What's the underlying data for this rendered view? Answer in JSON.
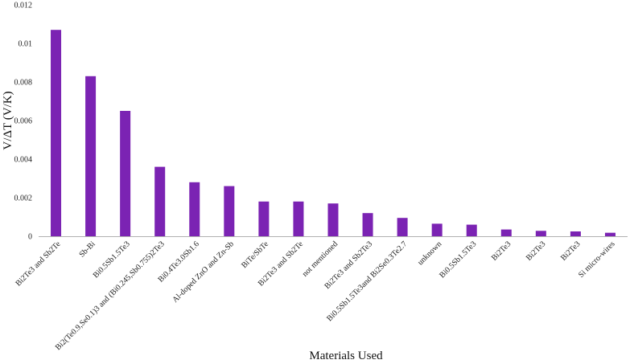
{
  "chart_data": {
    "type": "bar",
    "title": "",
    "xlabel": "Materials Used",
    "ylabel": "V/ΔT (V/K)",
    "ylim": [
      0,
      0.012
    ],
    "yticks": [
      "0",
      "0.002",
      "0.004",
      "0.006",
      "0.008",
      "0.01",
      "0.012"
    ],
    "ytick_values": [
      0,
      0.002,
      0.004,
      0.006,
      0.008,
      0.01,
      0.012
    ],
    "bar_color": "#7b23b3",
    "grid": false,
    "legend": "none",
    "categories": [
      "Bi2Te3 and Sb2Te",
      "Sb-Bi",
      "Bi0.5Sb1.5Te3",
      "Bi2(Te0.9,Se0.1)3 and (Bi0.245,Sb0.755)2Te3",
      "Bi0.4Te3.0Sb1.6",
      "Al-doped ZnO and Zn-Sb",
      "BiTe/SbTe",
      "Bi2Te3 and Sb2Te",
      "not mentioned",
      "Bi2Te3 and Sb2Te3",
      "Bi0.5Sb1.5Te3and Bi2Se0.3Te2.7",
      "unknown",
      "Bi0.5Sb1.5Te3",
      "Bi2Te3",
      "Bi2Te3",
      "Bi2Te3",
      "Si micro-wires"
    ],
    "values": [
      0.0107,
      0.0083,
      0.0065,
      0.0036,
      0.0028,
      0.0026,
      0.0018,
      0.0018,
      0.0017,
      0.0012,
      0.00095,
      0.00065,
      0.0006,
      0.00035,
      0.00028,
      0.00025,
      0.00018
    ]
  }
}
